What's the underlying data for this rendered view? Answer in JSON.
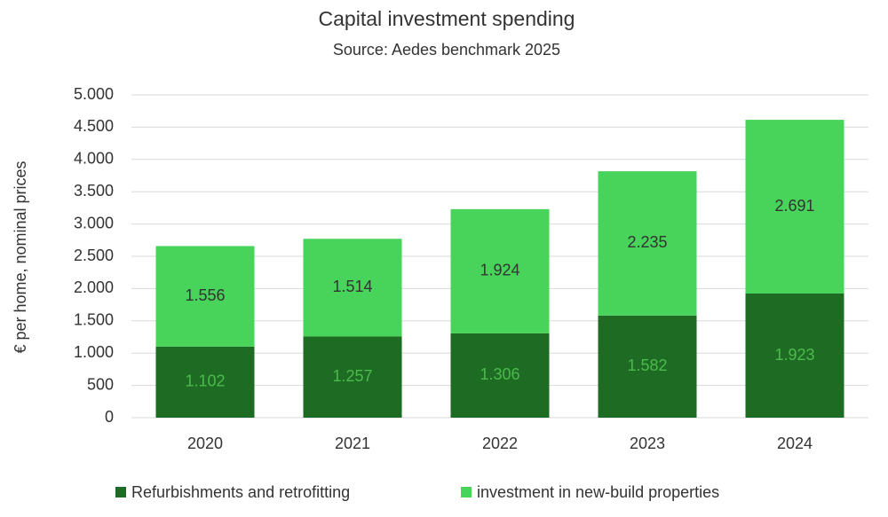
{
  "chart_data": {
    "type": "stacked_bar",
    "title": "Capital investment spending",
    "subtitle": "Source: Aedes benchmark 2025",
    "y_label": "€ per home, nominal prices",
    "categories": [
      "2020",
      "2021",
      "2022",
      "2023",
      "2024"
    ],
    "series": [
      {
        "name": "Refurbishments and retrofitting",
        "color": "#1e6b23",
        "label_color": "#4cba4c",
        "values": [
          1102,
          1257,
          1306,
          1582,
          1923
        ],
        "value_labels": [
          "1.102",
          "1.257",
          "1.306",
          "1.582",
          "1.923"
        ]
      },
      {
        "name": "investment in new-build properties",
        "color": "#48d35a",
        "label_color": "#333333",
        "values": [
          1556,
          1514,
          1924,
          2235,
          2691
        ],
        "value_labels": [
          "1.556",
          "1.514",
          "1.924",
          "2.235",
          "2.691"
        ]
      }
    ],
    "ylim": [
      0,
      5000
    ],
    "yticks": [
      0,
      {
        "value": 500,
        "label": "500"
      },
      {
        "value": 1000,
        "label": "1.000"
      },
      {
        "value": 1500,
        "label": "1.500"
      },
      {
        "value": 2000,
        "label": "2.000"
      },
      {
        "value": 2500,
        "label": "2.500"
      },
      {
        "value": 3000,
        "label": "3.000"
      },
      {
        "value": 3500,
        "label": "3.500"
      },
      {
        "value": 4000,
        "label": "4.000"
      },
      {
        "value": 4500,
        "label": "4.500"
      },
      {
        "value": 5000,
        "label": "5.000"
      }
    ],
    "grid": true
  }
}
